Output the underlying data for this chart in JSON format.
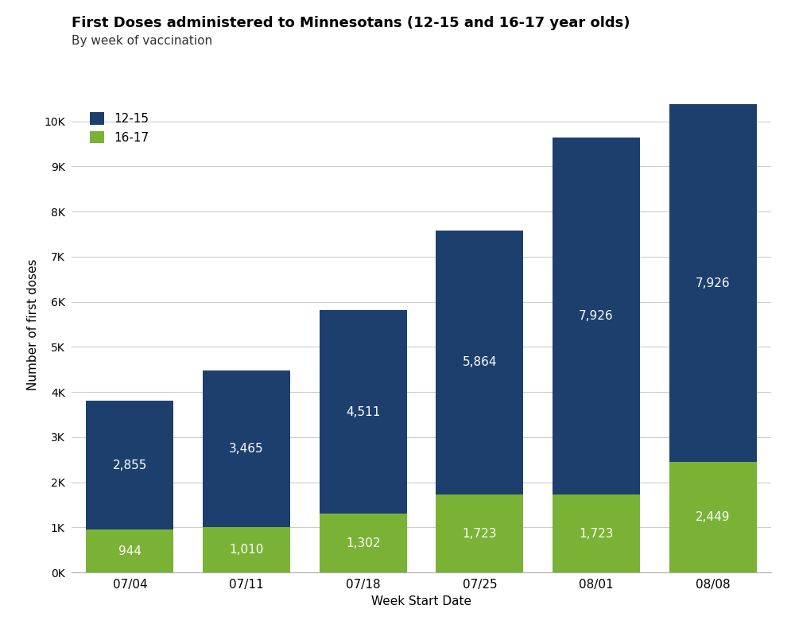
{
  "title": "First Doses administered to Minnesotans (12-15 and 16-17 year olds)",
  "subtitle": "By week of vaccination",
  "xlabel": "Week Start Date",
  "ylabel": "Number of first doses",
  "weeks": [
    "07/04",
    "07/11",
    "07/18",
    "07/25",
    "08/01",
    "08/08"
  ],
  "values_1215": [
    2855,
    3465,
    4511,
    5864,
    7926,
    7926
  ],
  "values_1617": [
    944,
    1010,
    1302,
    1723,
    1723,
    2449
  ],
  "color_1215": "#1c3f6e",
  "color_1617": "#7ab236",
  "ylim": [
    0,
    11000
  ],
  "yticks": [
    0,
    1000,
    2000,
    3000,
    4000,
    5000,
    6000,
    7000,
    8000,
    9000,
    10000
  ],
  "label_1215": "12-15",
  "label_1617": "16-17",
  "bar_width": 0.75,
  "background_color": "#ffffff",
  "grid_color": "#cccccc",
  "title_fontsize": 13,
  "subtitle_fontsize": 11,
  "label_fontsize": 11,
  "tick_fontsize": 11,
  "annotation_fontsize": 11,
  "annotation_color_white": "#ffffff"
}
